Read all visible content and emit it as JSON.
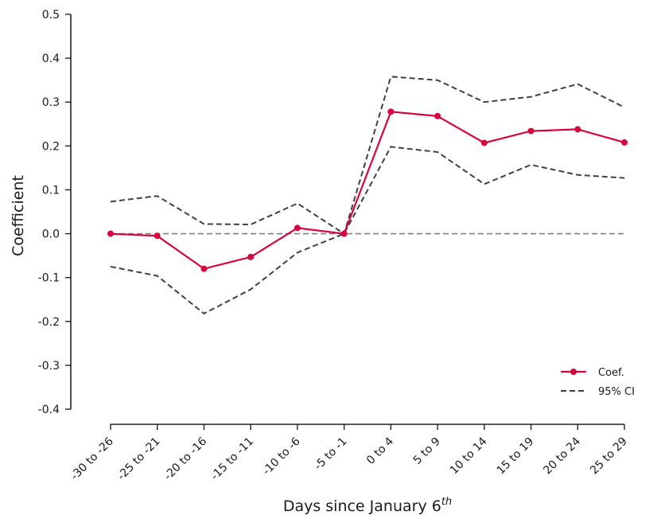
{
  "chart_data": {
    "type": "line",
    "xlabel": "Days since January 6",
    "xlabel_superscript": "th",
    "ylabel": "Coefficient",
    "categories": [
      "-30 to -26",
      "-25 to -21",
      "-20 to -16",
      "-15 to -11",
      "-10 to -6",
      "-5 to -1",
      "0 to 4",
      "5 to 9",
      "10 to 14",
      "15 to 19",
      "20 to 24",
      "25 to 29"
    ],
    "ylim": [
      -0.4,
      0.5
    ],
    "yticks": [
      "0.5",
      "0.4",
      "0.3",
      "0.2",
      "0.1",
      "0.0",
      "-0.1",
      "-0.2",
      "-0.3",
      "-0.4"
    ],
    "ytick_values": [
      0.5,
      0.4,
      0.3,
      0.2,
      0.1,
      0.0,
      -0.1,
      -0.2,
      -0.3,
      -0.4
    ],
    "reference_line": 0.0,
    "series": [
      {
        "name": "Coef.",
        "style": "solid-marker",
        "color": "#d6063f",
        "values": [
          0.0,
          -0.005,
          -0.08,
          -0.053,
          0.013,
          0.0,
          0.278,
          0.268,
          0.207,
          0.234,
          0.238,
          0.208
        ]
      },
      {
        "name": "95% CI",
        "style": "dashed",
        "color": "#404040",
        "bound": "upper",
        "values": [
          0.073,
          0.086,
          0.022,
          0.021,
          0.069,
          0.0,
          0.358,
          0.35,
          0.3,
          0.312,
          0.341,
          0.288
        ]
      },
      {
        "style": "dashed",
        "color": "#404040",
        "bound": "lower",
        "values": [
          -0.075,
          -0.096,
          -0.182,
          -0.127,
          -0.043,
          0.0,
          0.198,
          0.186,
          0.113,
          0.157,
          0.134,
          0.127
        ]
      }
    ],
    "legend": {
      "position": "bottom-right",
      "entries": [
        "Coef.",
        "95% CI"
      ]
    },
    "grid": false
  }
}
